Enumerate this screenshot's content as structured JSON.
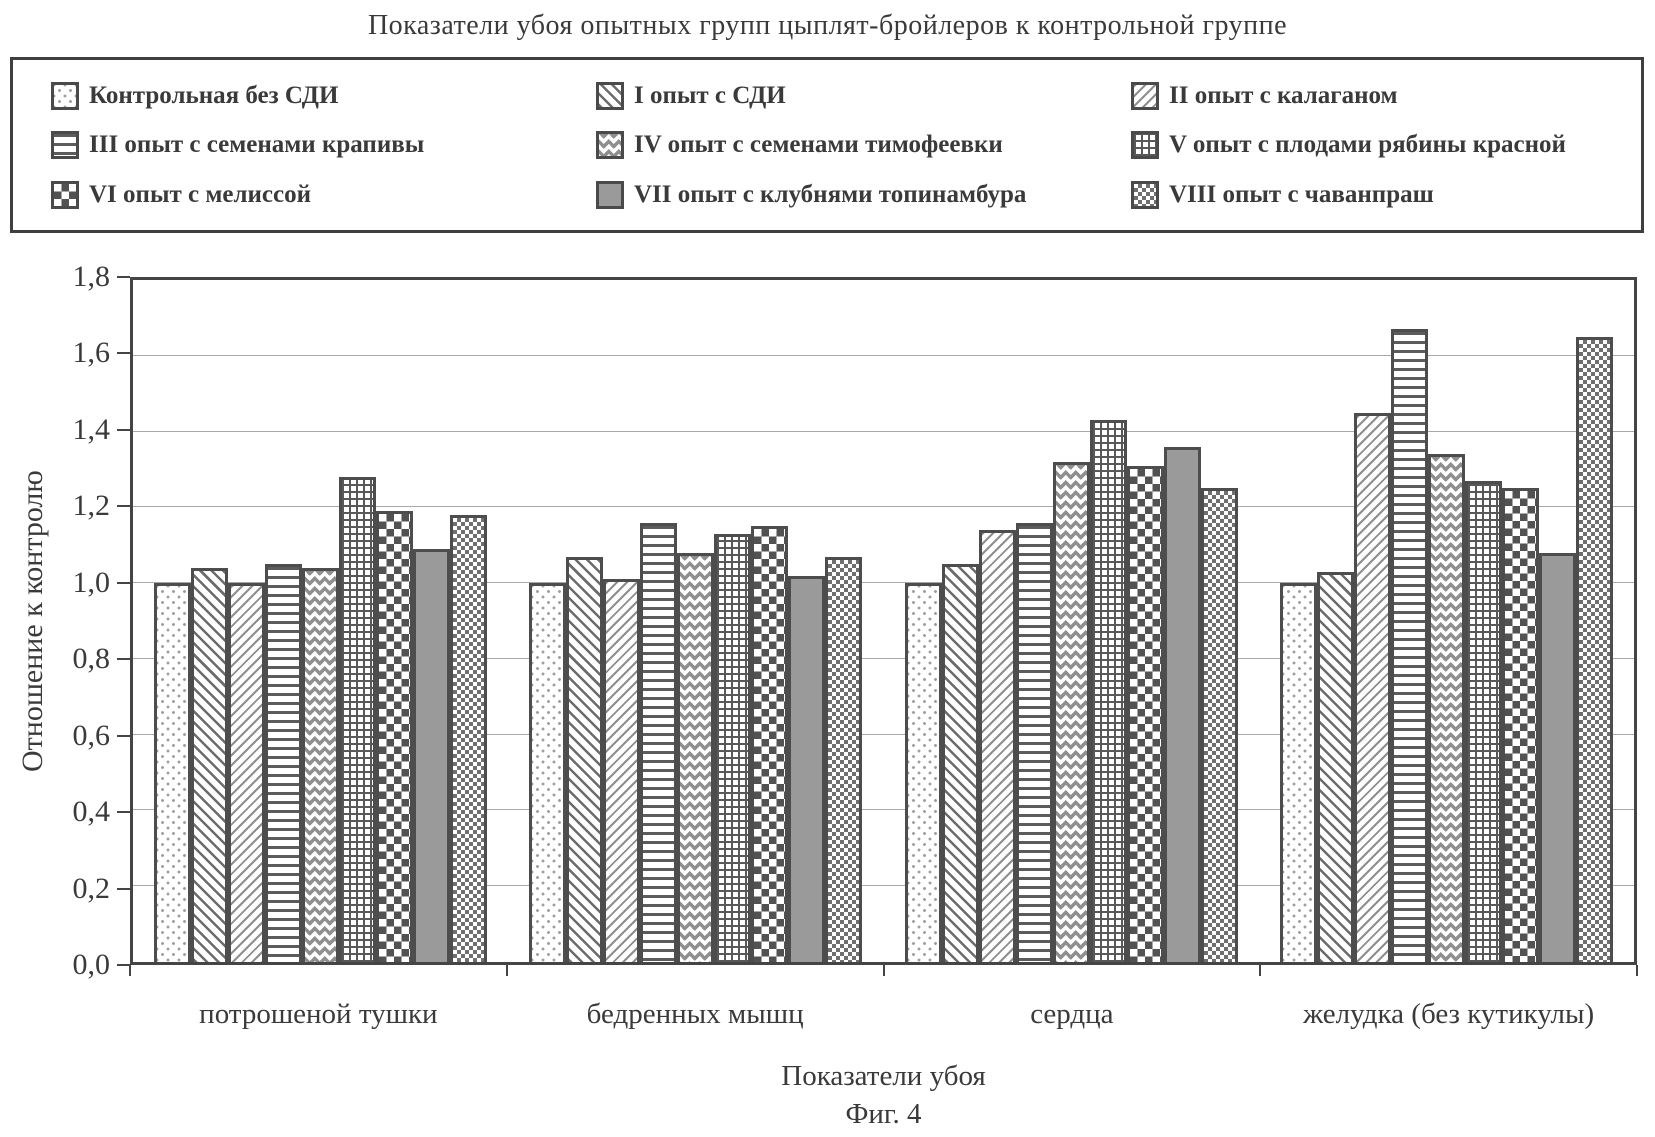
{
  "figure": {
    "title": "Показатели убоя опытных групп цыплят-бройлеров к контрольной группе",
    "caption": "Фиг. 4"
  },
  "chart_data": {
    "type": "bar",
    "title": "Показатели убоя опытных групп цыплят-бройлеров к контрольной группе",
    "xlabel": "Показатели убоя",
    "ylabel": "Отношение к контролю",
    "ylim": [
      0,
      1.8
    ],
    "ytick_step": 0.2,
    "ytick_labels": [
      "0,0",
      "0,2",
      "0,4",
      "0,6",
      "0,8",
      "1,0",
      "1,2",
      "1,4",
      "1,6",
      "1,8"
    ],
    "grid": true,
    "legend_position": "top",
    "categories": [
      "потрошеной тушки",
      "бедренных мышц",
      "сердца",
      "желудка (без кутикулы)"
    ],
    "series": [
      {
        "name": "Контрольная без СДИ",
        "pattern": "dots",
        "values": [
          1.0,
          1.0,
          1.0,
          1.0
        ]
      },
      {
        "name": "I опыт с СДИ",
        "pattern": "diag-down",
        "values": [
          1.04,
          1.07,
          1.05,
          1.03
        ]
      },
      {
        "name": "II опыт с калаганом",
        "pattern": "diag-up",
        "values": [
          1.0,
          1.01,
          1.14,
          1.45
        ]
      },
      {
        "name": "III опыт с семенами крапивы",
        "pattern": "hlines",
        "values": [
          1.05,
          1.16,
          1.16,
          1.67
        ]
      },
      {
        "name": "IV опыт с семенами тимофеевки",
        "pattern": "zigzag",
        "values": [
          1.04,
          1.08,
          1.32,
          1.34
        ]
      },
      {
        "name": "V опыт  с плодами рябины красной",
        "pattern": "grid",
        "values": [
          1.28,
          1.13,
          1.43,
          1.27
        ]
      },
      {
        "name": "VI опыт  с мелиссой",
        "pattern": "checker",
        "values": [
          1.19,
          1.15,
          1.31,
          1.25
        ]
      },
      {
        "name": "VII опыт с клубнями топинамбура",
        "pattern": "solid",
        "values": [
          1.09,
          1.02,
          1.36,
          1.08
        ]
      },
      {
        "name": "VIII опыт с чаванпраш",
        "pattern": "fine-checker",
        "values": [
          1.18,
          1.07,
          1.25,
          1.65
        ]
      }
    ]
  }
}
